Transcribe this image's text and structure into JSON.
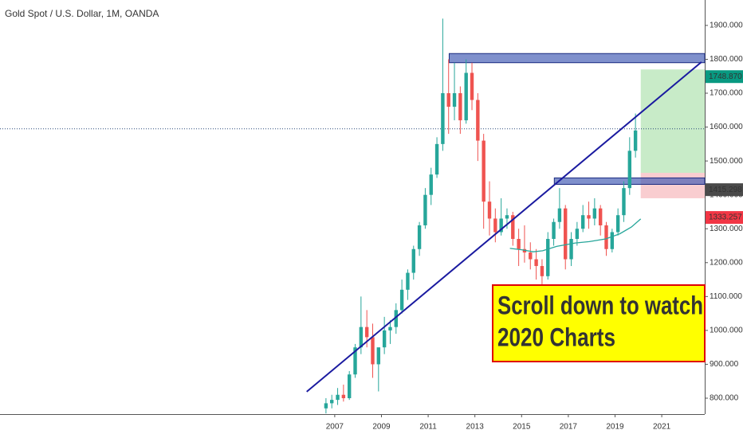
{
  "chart_data": {
    "type": "candlestick",
    "title": "Gold Spot / U.S. Dollar, 1M, OANDA",
    "up_color": "#26a69a",
    "down_color": "#ef5350",
    "x": [
      2006.625,
      2006.875,
      2007.125,
      2007.375,
      2007.625,
      2007.875,
      2008.125,
      2008.375,
      2008.625,
      2008.875,
      2009.125,
      2009.375,
      2009.625,
      2009.875,
      2010.125,
      2010.375,
      2010.625,
      2010.875,
      2011.125,
      2011.375,
      2011.625,
      2011.875,
      2012.125,
      2012.375,
      2012.625,
      2012.875,
      2013.125,
      2013.375,
      2013.625,
      2013.875,
      2014.125,
      2014.375,
      2014.625,
      2014.875,
      2015.125,
      2015.375,
      2015.625,
      2015.875,
      2016.125,
      2016.375,
      2016.625,
      2016.875,
      2017.125,
      2017.375,
      2017.625,
      2017.875,
      2018.125,
      2018.375,
      2018.625,
      2018.875,
      2019.125,
      2019.375,
      2019.625,
      2019.875
    ],
    "open": [
      770,
      785,
      795,
      810,
      800,
      870,
      950,
      1010,
      980,
      900,
      950,
      1000,
      1010,
      1060,
      1120,
      1170,
      1240,
      1310,
      1400,
      1460,
      1550,
      1700,
      1660,
      1700,
      1620,
      1760,
      1680,
      1560,
      1380,
      1330,
      1290,
      1330,
      1340,
      1270,
      1240,
      1230,
      1210,
      1190,
      1160,
      1270,
      1320,
      1360,
      1210,
      1270,
      1300,
      1340,
      1330,
      1360,
      1310,
      1240,
      1290,
      1340,
      1420,
      1530
    ],
    "high": [
      800,
      810,
      830,
      840,
      880,
      960,
      1100,
      1060,
      1020,
      940,
      1040,
      1030,
      1080,
      1150,
      1180,
      1250,
      1320,
      1420,
      1480,
      1570,
      1920,
      1800,
      1790,
      1720,
      1800,
      1790,
      1700,
      1580,
      1440,
      1360,
      1390,
      1360,
      1350,
      1300,
      1310,
      1260,
      1240,
      1210,
      1290,
      1330,
      1420,
      1370,
      1290,
      1320,
      1370,
      1380,
      1390,
      1370,
      1320,
      1300,
      1360,
      1440,
      1570,
      1640
    ],
    "low": [
      755,
      770,
      780,
      790,
      795,
      860,
      930,
      950,
      860,
      820,
      930,
      960,
      990,
      1050,
      1090,
      1150,
      1220,
      1300,
      1370,
      1450,
      1530,
      1580,
      1620,
      1580,
      1610,
      1650,
      1500,
      1300,
      1280,
      1260,
      1280,
      1300,
      1250,
      1190,
      1200,
      1180,
      1150,
      1130,
      1150,
      1250,
      1300,
      1180,
      1190,
      1250,
      1290,
      1300,
      1310,
      1280,
      1220,
      1230,
      1280,
      1320,
      1400,
      1510
    ],
    "close": [
      785,
      795,
      810,
      800,
      870,
      950,
      1010,
      980,
      900,
      950,
      1000,
      1010,
      1060,
      1120,
      1170,
      1240,
      1310,
      1400,
      1460,
      1550,
      1700,
      1660,
      1700,
      1620,
      1760,
      1680,
      1560,
      1380,
      1330,
      1290,
      1330,
      1340,
      1270,
      1240,
      1230,
      1210,
      1190,
      1160,
      1270,
      1320,
      1360,
      1210,
      1270,
      1300,
      1340,
      1330,
      1360,
      1310,
      1240,
      1290,
      1340,
      1420,
      1530,
      1590
    ],
    "moving_average": {
      "color": "#26a69a",
      "x": [
        2014.5,
        2015.0,
        2015.5,
        2015.9,
        2016.5,
        2017.3,
        2017.9,
        2018.6,
        2019.2,
        2019.7,
        2020.1
      ],
      "values": [
        1242,
        1238,
        1232,
        1235,
        1248,
        1258,
        1262,
        1270,
        1285,
        1305,
        1329
      ]
    },
    "trendline": {
      "color": "#1a1aa0",
      "x": [
        2005.8,
        2022.7
      ],
      "values": [
        819,
        1792
      ]
    },
    "zones": [
      {
        "color": "#3a55b0",
        "x": [
          2011.9,
          2022.84
        ],
        "y": [
          1790,
          1817
        ]
      },
      {
        "color": "#3a55b0",
        "x": [
          2016.4,
          2022.84
        ],
        "y": [
          1431,
          1450
        ]
      }
    ],
    "position": {
      "x": [
        2020.1,
        2022.84
      ],
      "target": 1770,
      "entry": 1465,
      "stop": 1390,
      "target_color": "#c8ebc8",
      "stop_color": "#f9cdd0"
    },
    "price_line": {
      "value": 1595,
      "color": "#2a4a7a"
    },
    "price_labels": [
      {
        "value": 1748.87,
        "label": "1748.870",
        "color": "#089981"
      },
      {
        "value": 1415.298,
        "label": "1415.298",
        "color": "#4a4a4a"
      },
      {
        "value": 1333.257,
        "label": "1333.257",
        "color": "#f23645"
      }
    ],
    "callout": {
      "lines": [
        "Scroll down to watch",
        "2020 Charts"
      ],
      "fill": "#ffff00",
      "border": "#e00000",
      "text_color": "#1515a8"
    },
    "xlim": [
      1992.67,
      2022.84
    ],
    "ylim": [
      753,
      1975
    ],
    "xticks": [
      2007,
      2009,
      2011,
      2013,
      2015,
      2017,
      2019,
      2021
    ],
    "yticks": [
      {
        "value": 800,
        "label": "800.000"
      },
      {
        "value": 900,
        "label": "900.000"
      },
      {
        "value": 1000,
        "label": "1000.000"
      },
      {
        "value": 1100,
        "label": "1100.000"
      },
      {
        "value": 1200,
        "label": "1200.000"
      },
      {
        "value": 1300,
        "label": "1300.000"
      },
      {
        "value": 1400,
        "label": "1400.000"
      },
      {
        "value": 1500,
        "label": "1500.000"
      },
      {
        "value": 1600,
        "label": "1600.000"
      },
      {
        "value": 1700,
        "label": "1700.000"
      },
      {
        "value": 1800,
        "label": "1800.000"
      },
      {
        "value": 1900,
        "label": "1900.000"
      }
    ]
  }
}
